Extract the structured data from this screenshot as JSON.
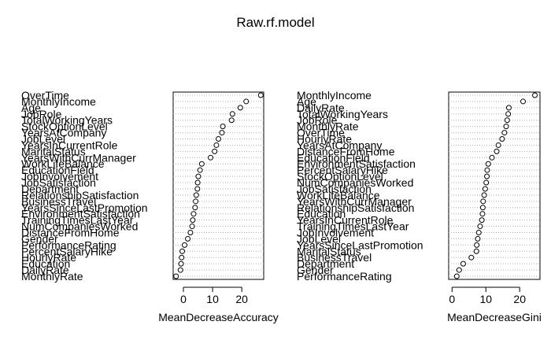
{
  "title": "Raw.rf.model",
  "chart_data": [
    {
      "type": "scatter",
      "xlabel": "MeanDecreaseAccuracy",
      "xticks": [
        0,
        10,
        20
      ],
      "xlim": [
        -3.5,
        27.5
      ],
      "labels": [
        "OverTime",
        "MonthlyIncome",
        "Age",
        "JobRole",
        "TotalWorkingYears",
        "StockOptionLevel",
        "YearsAtCompany",
        "JobLevel",
        "YearsInCurrentRole",
        "MaritalStatus",
        "YearsWithCurrManager",
        "WorkLifeBalance",
        "EducationField",
        "JobInvolvement",
        "JobSatisfaction",
        "Department",
        "RelationshipSatisfaction",
        "BusinessTravel",
        "YearsSinceLastPromotion",
        "EnvironmentSatisfaction",
        "TrainingTimesLastYear",
        "NumCompaniesWorked",
        "DistanceFromHome",
        "Gender",
        "PerformanceRating",
        "PercentSalaryHike",
        "HourlyRate",
        "Education",
        "DailyRate",
        "MonthlyRate"
      ],
      "values": [
        26.5,
        21.5,
        19.5,
        16.8,
        16.5,
        13.5,
        13.2,
        12.0,
        11.3,
        10.7,
        9.3,
        6.3,
        5.7,
        5.1,
        4.9,
        4.8,
        4.4,
        4.2,
        4.0,
        3.5,
        3.2,
        3.0,
        2.4,
        1.5,
        0.4,
        -0.4,
        -0.6,
        -0.8,
        -1.0,
        -2.5
      ]
    },
    {
      "type": "scatter",
      "xlabel": "MeanDecreaseGini",
      "xticks": [
        0,
        10,
        20
      ],
      "xlim": [
        -1,
        26
      ],
      "labels": [
        "MonthlyIncome",
        "Age",
        "DailyRate",
        "TotalWorkingYears",
        "JobRole",
        "MonthlyRate",
        "OverTime",
        "HourlyRate",
        "YearsAtCompany",
        "DistanceFromHome",
        "EducationField",
        "EnvironmentSatisfaction",
        "PercentSalaryHike",
        "StockOptionLevel",
        "NumCompaniesWorked",
        "JobSatisfaction",
        "WorkLifeBalance",
        "YearsWithCurrManager",
        "RelationshipSatisfaction",
        "Education",
        "YearsInCurrentRole",
        "TrainingTimesLastYear",
        "JobInvolvement",
        "JobLevel",
        "YearsSinceLastPromotion",
        "MaritalStatus",
        "BusinessTravel",
        "Department",
        "Gender",
        "PerformanceRating"
      ],
      "values": [
        24.5,
        21.0,
        16.8,
        16.6,
        16.3,
        16.0,
        15.5,
        14.8,
        13.7,
        13.2,
        11.8,
        10.7,
        10.4,
        10.3,
        10.1,
        9.8,
        9.5,
        9.2,
        9.1,
        9.0,
        8.8,
        8.3,
        7.9,
        7.6,
        7.3,
        7.2,
        5.7,
        3.3,
        2.1,
        1.4
      ]
    }
  ]
}
